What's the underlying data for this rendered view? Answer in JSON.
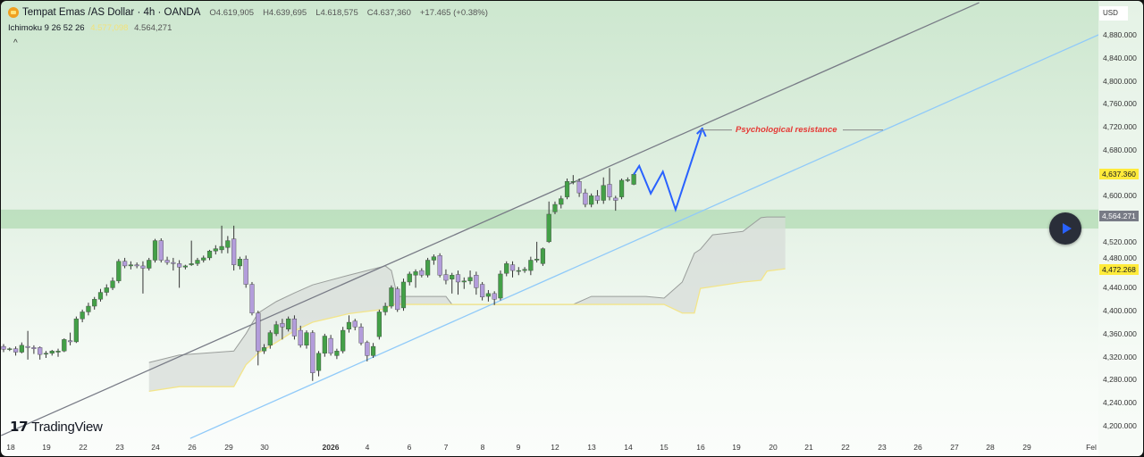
{
  "header": {
    "symbol": "Tempat Emas /AS Dollar · 4h · OANDA",
    "open": "O4.619,905",
    "high": "H4.639,695",
    "low": "L4.618,575",
    "close": "C4.637,360",
    "change": "+17.465 (+0.38%)",
    "indicator": "Ichimoku 9 26 52 26",
    "indicator_values": "4.577,098",
    "indicator_value": "4.564,271",
    "collapse": "^",
    "currency": "USD"
  },
  "logo": "TradingView",
  "colors": {
    "up": "#43a047",
    "down": "#b39ddb",
    "channel": "#787b86",
    "support": "#90caf9",
    "forecast": "#2962ff",
    "zone": "#a5d6a7",
    "cloud": "#d7dcd8",
    "annotation": "#e53935",
    "price_label": "#ffeb3b"
  },
  "chart_data": {
    "type": "candlestick",
    "price_axis": {
      "ticks": [
        "4,880.000",
        "4,840.000",
        "4,800.000",
        "4,760.000",
        "4,720.000",
        "4,680.000",
        "4,600.000",
        "4,520.000",
        "4,480.000",
        "4,440.000",
        "4,400.000",
        "4,360.000",
        "4,320.000",
        "4,280.000",
        "4,240.000",
        "4,200.000"
      ],
      "range": [
        4200,
        4880
      ]
    },
    "time_axis": [
      "18",
      "19",
      "22",
      "23",
      "24",
      "26",
      "29",
      "30",
      "2026",
      "4",
      "6",
      "7",
      "8",
      "9",
      "12",
      "13",
      "14",
      "15",
      "16",
      "19",
      "20",
      "21",
      "22",
      "23",
      "26",
      "27",
      "28",
      "29",
      "Fel"
    ],
    "price_labels": [
      {
        "value": 4637.36,
        "text": "4,637.360",
        "style": "yellow"
      },
      {
        "value": 4564.271,
        "text": "4,564.271",
        "style": "grey"
      },
      {
        "value": 4472.268,
        "text": "4,472.268",
        "style": "yellow"
      }
    ],
    "candles": [
      [
        4338,
        4342,
        4328,
        4333
      ],
      [
        4333,
        4336,
        4330,
        4334
      ],
      [
        4334,
        4338,
        4322,
        4328
      ],
      [
        4328,
        4345,
        4326,
        4340
      ],
      [
        4338,
        4365,
        4315,
        4336
      ],
      [
        4336,
        4340,
        4325,
        4334
      ],
      [
        4336,
        4338,
        4315,
        4324
      ],
      [
        4325,
        4330,
        4318,
        4326
      ],
      [
        4326,
        4332,
        4322,
        4330
      ],
      [
        4328,
        4334,
        4320,
        4330
      ],
      [
        4330,
        4352,
        4328,
        4350
      ],
      [
        4348,
        4362,
        4340,
        4346
      ],
      [
        4346,
        4390,
        4344,
        4386
      ],
      [
        4386,
        4402,
        4380,
        4398
      ],
      [
        4398,
        4414,
        4392,
        4408
      ],
      [
        4408,
        4424,
        4402,
        4420
      ],
      [
        4420,
        4438,
        4416,
        4432
      ],
      [
        4432,
        4446,
        4426,
        4440
      ],
      [
        4440,
        4458,
        4436,
        4452
      ],
      [
        4452,
        4490,
        4448,
        4486
      ],
      [
        4486,
        4492,
        4474,
        4478
      ],
      [
        4478,
        4486,
        4472,
        4480
      ],
      [
        4480,
        4484,
        4474,
        4478
      ],
      [
        4478,
        4486,
        4430,
        4474
      ],
      [
        4474,
        4492,
        4470,
        4488
      ],
      [
        4488,
        4525,
        4484,
        4522
      ],
      [
        4522,
        4526,
        4484,
        4488
      ],
      [
        4488,
        4494,
        4480,
        4484
      ],
      [
        4484,
        4492,
        4470,
        4482
      ],
      [
        4482,
        4488,
        4440,
        4476
      ],
      [
        4476,
        4480,
        4472,
        4478
      ],
      [
        4480,
        4522,
        4478,
        4482
      ],
      [
        4482,
        4492,
        4478,
        4488
      ],
      [
        4488,
        4496,
        4484,
        4492
      ],
      [
        4492,
        4506,
        4488,
        4504
      ],
      [
        4504,
        4514,
        4498,
        4508
      ],
      [
        4506,
        4548,
        4500,
        4512
      ],
      [
        4510,
        4530,
        4500,
        4522
      ],
      [
        4525,
        4548,
        4470,
        4480
      ],
      [
        4478,
        4494,
        4472,
        4490
      ],
      [
        4490,
        4496,
        4440,
        4446
      ],
      [
        4446,
        4450,
        4392,
        4396
      ],
      [
        4396,
        4400,
        4305,
        4330
      ],
      [
        4330,
        4342,
        4325,
        4336
      ],
      [
        4340,
        4366,
        4334,
        4362
      ],
      [
        4360,
        4382,
        4356,
        4376
      ],
      [
        4378,
        4386,
        4350,
        4372
      ],
      [
        4368,
        4390,
        4364,
        4386
      ],
      [
        4386,
        4392,
        4350,
        4356
      ],
      [
        4366,
        4374,
        4336,
        4340
      ],
      [
        4340,
        4366,
        4334,
        4362
      ],
      [
        4362,
        4366,
        4278,
        4292
      ],
      [
        4296,
        4330,
        4286,
        4326
      ],
      [
        4326,
        4360,
        4320,
        4356
      ],
      [
        4352,
        4358,
        4322,
        4326
      ],
      [
        4322,
        4334,
        4316,
        4330
      ],
      [
        4330,
        4372,
        4326,
        4366
      ],
      [
        4368,
        4392,
        4362,
        4380
      ],
      [
        4382,
        4386,
        4366,
        4372
      ],
      [
        4372,
        4378,
        4340,
        4344
      ],
      [
        4345,
        4348,
        4312,
        4322
      ],
      [
        4322,
        4344,
        4318,
        4338
      ],
      [
        4355,
        4402,
        4350,
        4398
      ],
      [
        4398,
        4414,
        4392,
        4408
      ],
      [
        4408,
        4444,
        4404,
        4440
      ],
      [
        4438,
        4442,
        4398,
        4402
      ],
      [
        4405,
        4456,
        4400,
        4450
      ],
      [
        4450,
        4468,
        4444,
        4464
      ],
      [
        4462,
        4472,
        4440,
        4468
      ],
      [
        4470,
        4474,
        4458,
        4462
      ],
      [
        4462,
        4492,
        4458,
        4488
      ],
      [
        4488,
        4498,
        4480,
        4494
      ],
      [
        4496,
        4500,
        4458,
        4462
      ],
      [
        4463,
        4472,
        4446,
        4453
      ],
      [
        4455,
        4466,
        4430,
        4462
      ],
      [
        4463,
        4470,
        4428,
        4450
      ],
      [
        4450,
        4458,
        4438,
        4452
      ],
      [
        4452,
        4470,
        4446,
        4458
      ],
      [
        4462,
        4468,
        4428,
        4440
      ],
      [
        4446,
        4450,
        4418,
        4424
      ],
      [
        4425,
        4436,
        4416,
        4430
      ],
      [
        4430,
        4434,
        4410,
        4420
      ],
      [
        4422,
        4470,
        4418,
        4464
      ],
      [
        4465,
        4486,
        4460,
        4482
      ],
      [
        4480,
        4486,
        4458,
        4470
      ],
      [
        4470,
        4476,
        4462,
        4470
      ],
      [
        4470,
        4476,
        4466,
        4472
      ],
      [
        4470,
        4494,
        4462,
        4488
      ],
      [
        4488,
        4520,
        4484,
        4490
      ],
      [
        4482,
        4510,
        4478,
        4508
      ],
      [
        4520,
        4590,
        4518,
        4568
      ],
      [
        4572,
        4590,
        4568,
        4585
      ],
      [
        4585,
        4600,
        4578,
        4595
      ],
      [
        4598,
        4630,
        4594,
        4625
      ],
      [
        4625,
        4636,
        4620,
        4625
      ],
      [
        4625,
        4630,
        4598,
        4605
      ],
      [
        4605,
        4612,
        4580,
        4585
      ],
      [
        4585,
        4604,
        4580,
        4600
      ],
      [
        4600,
        4610,
        4586,
        4592
      ],
      [
        4592,
        4632,
        4586,
        4618
      ],
      [
        4620,
        4648,
        4592,
        4598
      ],
      [
        4596,
        4600,
        4574,
        4592
      ],
      [
        4598,
        4630,
        4594,
        4627
      ],
      [
        4628,
        4632,
        4624,
        4628
      ],
      [
        4619.905,
        4639.695,
        4618.575,
        4637.36
      ]
    ],
    "ichimoku_cloud": [
      [
        24,
        4310,
        4260
      ],
      [
        29,
        4323,
        4268
      ],
      [
        38,
        4330,
        4268
      ],
      [
        40,
        4360,
        4306
      ],
      [
        42,
        4396,
        4326
      ],
      [
        45,
        4416,
        4345
      ],
      [
        48,
        4431,
        4365
      ],
      [
        51,
        4445,
        4380
      ],
      [
        57,
        4462,
        4395
      ],
      [
        63,
        4478,
        4403
      ],
      [
        64,
        4470,
        4411
      ],
      [
        65,
        4425,
        4411
      ],
      [
        73,
        4425,
        4411
      ],
      [
        74,
        4411,
        4411
      ],
      [
        94,
        4411,
        4411
      ],
      [
        97,
        4425,
        4411
      ],
      [
        106,
        4425,
        4411
      ],
      [
        109,
        4422,
        4411
      ],
      [
        112,
        4450,
        4396
      ],
      [
        114,
        4500,
        4396
      ],
      [
        115,
        4507,
        4439
      ],
      [
        117,
        4532,
        4442
      ],
      [
        122,
        4538,
        4450
      ],
      [
        125,
        4562,
        4453
      ],
      [
        126,
        4563,
        4469
      ],
      [
        129,
        4563,
        4473
      ]
    ],
    "zone": [
      4543,
      4576
    ],
    "channel_line": [
      [
        -0.4,
        4183
      ],
      [
        161,
        4936
      ]
    ],
    "support_line": [
      [
        30.8,
        4178
      ],
      [
        180.7,
        4880
      ]
    ],
    "forecast_path": [
      [
        104,
        4637
      ],
      [
        104.9,
        4652
      ],
      [
        106.8,
        4604
      ],
      [
        108.8,
        4642
      ],
      [
        110.9,
        4576
      ],
      [
        115.3,
        4717
      ]
    ],
    "annotation": {
      "text": "Psychological resistance",
      "price": 4716
    }
  }
}
